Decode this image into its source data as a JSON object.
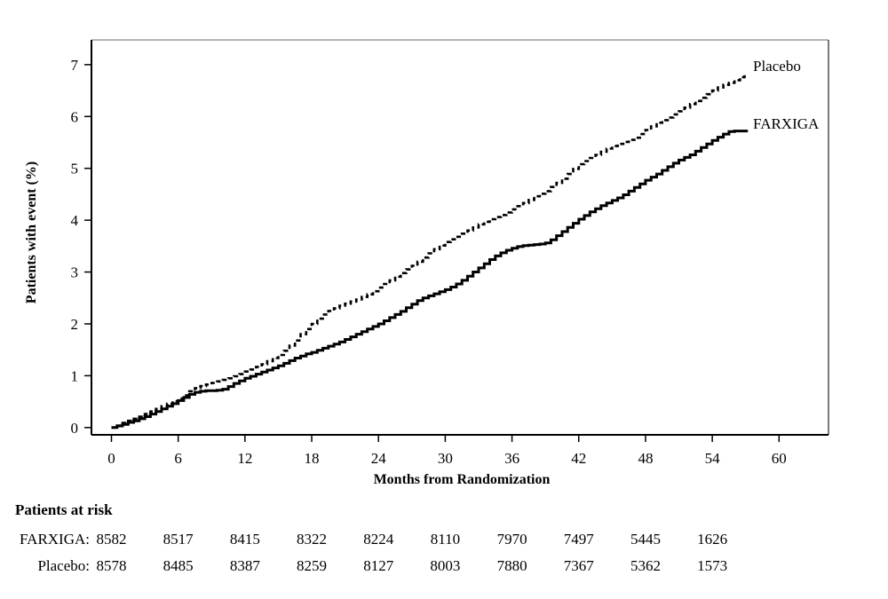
{
  "chart_data": {
    "type": "line",
    "subtype": "kaplan-meier-step",
    "title": "",
    "xlabel": "Months from Randomization",
    "ylabel": "Patients with event (%)",
    "x_ticks": [
      0,
      6,
      12,
      18,
      24,
      30,
      36,
      42,
      48,
      54,
      60
    ],
    "y_ticks": [
      0,
      1,
      2,
      3,
      4,
      5,
      6,
      7
    ],
    "xlim": [
      -1.8,
      64.4
    ],
    "ylim": [
      -0.14,
      7.48
    ],
    "grid": false,
    "legend_position": "right-inside",
    "line_color": "#000000",
    "series": [
      {
        "name": "Placebo",
        "line_style": "dashed",
        "points": [
          [
            0,
            0
          ],
          [
            0.5,
            0.04
          ],
          [
            1,
            0.09
          ],
          [
            1.5,
            0.13
          ],
          [
            2,
            0.17
          ],
          [
            2.5,
            0.21
          ],
          [
            3,
            0.26
          ],
          [
            3.5,
            0.31
          ],
          [
            4,
            0.36
          ],
          [
            4.5,
            0.41
          ],
          [
            5,
            0.46
          ],
          [
            5.5,
            0.51
          ],
          [
            6,
            0.56
          ],
          [
            6.5,
            0.62
          ],
          [
            7,
            0.7
          ],
          [
            7.5,
            0.76
          ],
          [
            8,
            0.8
          ],
          [
            8.5,
            0.83
          ],
          [
            9,
            0.86
          ],
          [
            9.5,
            0.89
          ],
          [
            10,
            0.92
          ],
          [
            10.5,
            0.95
          ],
          [
            11,
            0.99
          ],
          [
            11.5,
            1.03
          ],
          [
            12,
            1.08
          ],
          [
            12.5,
            1.12
          ],
          [
            13,
            1.17
          ],
          [
            13.5,
            1.22
          ],
          [
            14,
            1.28
          ],
          [
            14.5,
            1.34
          ],
          [
            15,
            1.4
          ],
          [
            15.5,
            1.48
          ],
          [
            16,
            1.58
          ],
          [
            16.5,
            1.68
          ],
          [
            17,
            1.8
          ],
          [
            17.5,
            1.9
          ],
          [
            18,
            2
          ],
          [
            18.5,
            2.1
          ],
          [
            19,
            2.18
          ],
          [
            19.5,
            2.25
          ],
          [
            20,
            2.3
          ],
          [
            20.5,
            2.35
          ],
          [
            21,
            2.39
          ],
          [
            21.5,
            2.43
          ],
          [
            22,
            2.47
          ],
          [
            22.5,
            2.52
          ],
          [
            23,
            2.57
          ],
          [
            23.5,
            2.63
          ],
          [
            24,
            2.7
          ],
          [
            24.5,
            2.77
          ],
          [
            25,
            2.84
          ],
          [
            25.5,
            2.91
          ],
          [
            26,
            2.98
          ],
          [
            26.5,
            3.05
          ],
          [
            27,
            3.12
          ],
          [
            27.5,
            3.2
          ],
          [
            28,
            3.28
          ],
          [
            28.5,
            3.36
          ],
          [
            29,
            3.44
          ],
          [
            29.5,
            3.51
          ],
          [
            30,
            3.58
          ],
          [
            30.5,
            3.63
          ],
          [
            31,
            3.68
          ],
          [
            31.5,
            3.74
          ],
          [
            32,
            3.8
          ],
          [
            32.5,
            3.86
          ],
          [
            33,
            3.92
          ],
          [
            33.5,
            3.97
          ],
          [
            34,
            4.02
          ],
          [
            34.5,
            4.06
          ],
          [
            35,
            4.1
          ],
          [
            35.5,
            4.15
          ],
          [
            36,
            4.21
          ],
          [
            36.5,
            4.27
          ],
          [
            37,
            4.33
          ],
          [
            37.5,
            4.39
          ],
          [
            38,
            4.46
          ],
          [
            38.5,
            4.51
          ],
          [
            39,
            4.56
          ],
          [
            39.5,
            4.64
          ],
          [
            40,
            4.72
          ],
          [
            40.5,
            4.8
          ],
          [
            41,
            4.89
          ],
          [
            41.5,
            4.99
          ],
          [
            42,
            5.08
          ],
          [
            42.5,
            5.14
          ],
          [
            43,
            5.2
          ],
          [
            43.5,
            5.26
          ],
          [
            44,
            5.32
          ],
          [
            44.5,
            5.38
          ],
          [
            45,
            5.43
          ],
          [
            45.5,
            5.47
          ],
          [
            46,
            5.51
          ],
          [
            46.5,
            5.55
          ],
          [
            47,
            5.59
          ],
          [
            47.5,
            5.66
          ],
          [
            48,
            5.74
          ],
          [
            48.5,
            5.81
          ],
          [
            49,
            5.88
          ],
          [
            49.5,
            5.93
          ],
          [
            50,
            5.98
          ],
          [
            50.5,
            6.04
          ],
          [
            51,
            6.1
          ],
          [
            51.5,
            6.17
          ],
          [
            52,
            6.24
          ],
          [
            52.5,
            6.3
          ],
          [
            53,
            6.36
          ],
          [
            53.5,
            6.43
          ],
          [
            54,
            6.5
          ],
          [
            54.5,
            6.56
          ],
          [
            55,
            6.61
          ],
          [
            55.5,
            6.65
          ],
          [
            56,
            6.7
          ],
          [
            56.5,
            6.76
          ],
          [
            56.9,
            6.82
          ]
        ]
      },
      {
        "name": "FARXIGA",
        "line_style": "solid",
        "points": [
          [
            0,
            0
          ],
          [
            0.5,
            0.03
          ],
          [
            1,
            0.06
          ],
          [
            1.5,
            0.1
          ],
          [
            2,
            0.13
          ],
          [
            2.5,
            0.17
          ],
          [
            3,
            0.21
          ],
          [
            3.5,
            0.26
          ],
          [
            4,
            0.31
          ],
          [
            4.5,
            0.36
          ],
          [
            5,
            0.41
          ],
          [
            5.5,
            0.46
          ],
          [
            6,
            0.52
          ],
          [
            6.5,
            0.58
          ],
          [
            7,
            0.64
          ],
          [
            7.5,
            0.68
          ],
          [
            8,
            0.7
          ],
          [
            8.5,
            0.71
          ],
          [
            9,
            0.71
          ],
          [
            9.5,
            0.72
          ],
          [
            10,
            0.74
          ],
          [
            10.5,
            0.79
          ],
          [
            11,
            0.85
          ],
          [
            11.5,
            0.9
          ],
          [
            12,
            0.95
          ],
          [
            12.5,
            0.99
          ],
          [
            13,
            1.03
          ],
          [
            13.5,
            1.07
          ],
          [
            14,
            1.11
          ],
          [
            14.5,
            1.15
          ],
          [
            15,
            1.19
          ],
          [
            15.5,
            1.24
          ],
          [
            16,
            1.29
          ],
          [
            16.5,
            1.34
          ],
          [
            17,
            1.38
          ],
          [
            17.5,
            1.42
          ],
          [
            18,
            1.45
          ],
          [
            18.5,
            1.49
          ],
          [
            19,
            1.53
          ],
          [
            19.5,
            1.57
          ],
          [
            20,
            1.61
          ],
          [
            20.5,
            1.65
          ],
          [
            21,
            1.7
          ],
          [
            21.5,
            1.75
          ],
          [
            22,
            1.8
          ],
          [
            22.5,
            1.85
          ],
          [
            23,
            1.9
          ],
          [
            23.5,
            1.95
          ],
          [
            24,
            2
          ],
          [
            24.5,
            2.06
          ],
          [
            25,
            2.12
          ],
          [
            25.5,
            2.18
          ],
          [
            26,
            2.24
          ],
          [
            26.5,
            2.31
          ],
          [
            27,
            2.38
          ],
          [
            27.5,
            2.45
          ],
          [
            28,
            2.5
          ],
          [
            28.5,
            2.54
          ],
          [
            29,
            2.58
          ],
          [
            29.5,
            2.62
          ],
          [
            30,
            2.66
          ],
          [
            30.5,
            2.71
          ],
          [
            31,
            2.77
          ],
          [
            31.5,
            2.84
          ],
          [
            32,
            2.92
          ],
          [
            32.5,
            3
          ],
          [
            33,
            3.08
          ],
          [
            33.5,
            3.16
          ],
          [
            34,
            3.24
          ],
          [
            34.5,
            3.31
          ],
          [
            35,
            3.37
          ],
          [
            35.5,
            3.42
          ],
          [
            36,
            3.46
          ],
          [
            36.5,
            3.49
          ],
          [
            37,
            3.51
          ],
          [
            37.5,
            3.52
          ],
          [
            38,
            3.53
          ],
          [
            38.5,
            3.54
          ],
          [
            39,
            3.56
          ],
          [
            39.5,
            3.62
          ],
          [
            40,
            3.7
          ],
          [
            40.5,
            3.78
          ],
          [
            41,
            3.86
          ],
          [
            41.5,
            3.94
          ],
          [
            42,
            4.02
          ],
          [
            42.5,
            4.09
          ],
          [
            43,
            4.16
          ],
          [
            43.5,
            4.22
          ],
          [
            44,
            4.28
          ],
          [
            44.5,
            4.33
          ],
          [
            45,
            4.38
          ],
          [
            45.5,
            4.43
          ],
          [
            46,
            4.49
          ],
          [
            46.5,
            4.56
          ],
          [
            47,
            4.63
          ],
          [
            47.5,
            4.7
          ],
          [
            48,
            4.77
          ],
          [
            48.5,
            4.83
          ],
          [
            49,
            4.89
          ],
          [
            49.5,
            4.96
          ],
          [
            50,
            5.03
          ],
          [
            50.5,
            5.1
          ],
          [
            51,
            5.16
          ],
          [
            51.5,
            5.21
          ],
          [
            52,
            5.26
          ],
          [
            52.5,
            5.33
          ],
          [
            53,
            5.4
          ],
          [
            53.5,
            5.47
          ],
          [
            54,
            5.54
          ],
          [
            54.5,
            5.6
          ],
          [
            55,
            5.66
          ],
          [
            55.5,
            5.71
          ],
          [
            56,
            5.72
          ],
          [
            57.2,
            5.72
          ]
        ]
      }
    ]
  },
  "patients_at_risk": {
    "heading": "Patients at risk",
    "months": [
      0,
      6,
      12,
      18,
      24,
      30,
      36,
      42,
      48,
      54
    ],
    "rows": [
      {
        "label": "FARXIGA:",
        "values": [
          8582,
          8517,
          8415,
          8322,
          8224,
          8110,
          7970,
          7497,
          5445,
          1626
        ]
      },
      {
        "label": "Placebo:",
        "values": [
          8578,
          8485,
          8387,
          8259,
          8127,
          8003,
          7880,
          7367,
          5362,
          1573
        ]
      }
    ]
  }
}
